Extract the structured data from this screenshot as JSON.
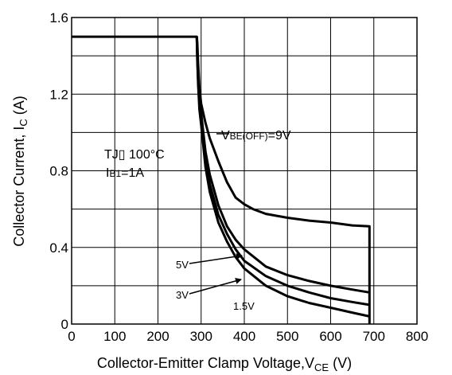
{
  "chart_data": {
    "type": "line",
    "xlabel": {
      "main": "Collector-Emitter Clamp Voltage,V",
      "sub": "CE",
      "unit": " (V)"
    },
    "ylabel": {
      "main": "Collector Current, I",
      "sub": "C",
      "unit": " (A)"
    },
    "xlim": [
      0,
      800
    ],
    "ylim": [
      0,
      1.6
    ],
    "x_ticks": [
      0,
      100,
      200,
      300,
      400,
      500,
      600,
      700,
      800
    ],
    "y_ticks": [
      0,
      0.4,
      0.8,
      1.2,
      1.6
    ],
    "y_tick_labels": [
      "0",
      "0.4",
      "0.8",
      "1.2",
      "1.6"
    ],
    "x_tick_labels": [
      "0",
      "100",
      "200",
      "300",
      "400",
      "500",
      "600",
      "700",
      "800"
    ],
    "grid": true,
    "y_minor_gridlines": [
      0.2,
      0.6,
      1.0,
      1.4
    ],
    "conditions": {
      "tj_text": "TJ▯ 100°C",
      "ib_prefix": "I",
      "ib_sub": "B1",
      "ib_value": "=1A"
    },
    "series": [
      {
        "name": "VBE(OFF)=9V",
        "label_main": "V",
        "label_sub": "BE(OFF)",
        "label_value": "=9V",
        "x": [
          0,
          290,
          291,
          293,
          296,
          300,
          310,
          320,
          340,
          360,
          380,
          400,
          420,
          450,
          500,
          550,
          600,
          650,
          690,
          690
        ],
        "y": [
          1.5,
          1.5,
          1.47,
          1.36,
          1.23,
          1.15,
          1.05,
          0.97,
          0.85,
          0.74,
          0.66,
          0.625,
          0.6,
          0.575,
          0.555,
          0.54,
          0.53,
          0.515,
          0.51,
          0
        ]
      },
      {
        "name": "5V",
        "label": "5V",
        "x": [
          290,
          291,
          293,
          296,
          300,
          310,
          320,
          340,
          360,
          380,
          400,
          450,
          500,
          550,
          600,
          650,
          690
        ],
        "y": [
          1.5,
          1.42,
          1.3,
          1.18,
          1.1,
          0.9,
          0.78,
          0.62,
          0.51,
          0.44,
          0.39,
          0.3,
          0.255,
          0.225,
          0.2,
          0.18,
          0.165
        ]
      },
      {
        "name": "3V",
        "label": "3V",
        "x": [
          290,
          291,
          293,
          296,
          300,
          310,
          320,
          340,
          360,
          380,
          400,
          450,
          500,
          550,
          600,
          650,
          690
        ],
        "y": [
          1.5,
          1.4,
          1.27,
          1.15,
          1.07,
          0.86,
          0.73,
          0.57,
          0.47,
          0.39,
          0.33,
          0.25,
          0.2,
          0.165,
          0.135,
          0.115,
          0.1
        ]
      },
      {
        "name": "1.5V",
        "label": "1.5V",
        "x": [
          290,
          291,
          293,
          296,
          300,
          310,
          320,
          340,
          360,
          380,
          400,
          450,
          500,
          550,
          600,
          650,
          690
        ],
        "y": [
          1.5,
          1.38,
          1.25,
          1.12,
          1.04,
          0.82,
          0.69,
          0.53,
          0.43,
          0.35,
          0.29,
          0.2,
          0.145,
          0.11,
          0.085,
          0.06,
          0.04
        ]
      }
    ]
  }
}
